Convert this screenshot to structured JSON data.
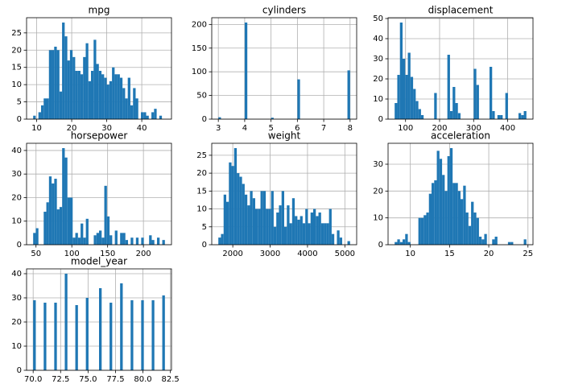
{
  "chart_data": [
    {
      "type": "histogram",
      "title": "mpg",
      "color": "#1f77b4",
      "grid": true,
      "bins": [
        9,
        9.75,
        10.5,
        11.25,
        12,
        12.75,
        13.5,
        14.25,
        15,
        15.75,
        16.5,
        17.25,
        18,
        18.75,
        19.5,
        20.25,
        21,
        21.75,
        22.5,
        23.25,
        24,
        24.75,
        25.5,
        26.25,
        27,
        27.75,
        28.5,
        29.25,
        30,
        30.75,
        31.5,
        32.25,
        33,
        33.75,
        34.5,
        35.25,
        36,
        36.75,
        37.5,
        38.25,
        39,
        39.75,
        40.5,
        41.25,
        42,
        42.75,
        43.5,
        44.25,
        45,
        45.75,
        46.5
      ],
      "values": [
        1,
        0,
        2,
        4,
        6,
        6,
        20,
        20,
        21,
        20,
        8,
        28,
        24,
        17,
        20,
        18,
        14,
        14,
        13,
        18,
        22,
        11,
        14,
        23,
        16,
        14,
        13,
        12,
        10,
        11,
        15,
        13,
        13,
        12,
        9,
        6,
        12,
        4,
        9,
        6,
        0,
        2,
        2,
        1,
        0,
        2,
        3,
        0,
        1,
        0
      ],
      "xlim": [
        7.12,
        48.48
      ],
      "ylim": [
        0,
        29.4
      ],
      "xticks": [
        10,
        20,
        30,
        40
      ],
      "yticks": [
        0,
        5,
        10,
        15,
        20,
        25
      ]
    },
    {
      "type": "histogram",
      "title": "cylinders",
      "color": "#1f77b4",
      "grid": true,
      "bins": [
        3,
        3.1,
        4,
        4.1,
        5,
        5.1,
        6,
        6.1,
        7.9,
        8
      ],
      "values": [
        4,
        0,
        204,
        0,
        3,
        0,
        84,
        0,
        103
      ],
      "xlim": [
        2.75,
        8.25
      ],
      "ylim": [
        0,
        214.2
      ],
      "xticks": [
        3,
        4,
        5,
        6,
        7,
        8
      ],
      "yticks": [
        0,
        50,
        100,
        150,
        200
      ]
    },
    {
      "type": "histogram",
      "title": "displacement",
      "color": "#1f77b4",
      "grid": true,
      "bins": [
        68,
        75.74,
        83.48,
        91.22,
        98.96,
        106.7,
        114.44,
        122.18,
        129.92,
        137.66,
        145.4,
        153.14,
        160.88,
        168.62,
        176.36,
        184.1,
        191.84,
        199.58,
        207.32,
        215.06,
        222.8,
        230.54,
        238.28,
        246.02,
        253.76,
        261.5,
        269.24,
        276.98,
        284.72,
        292.46,
        300.2,
        307.94,
        315.68,
        323.42,
        331.16,
        338.9,
        346.64,
        354.38,
        362.12,
        369.86,
        377.6,
        385.34,
        393.08,
        400.82,
        408.56,
        416.3,
        424.04,
        431.78,
        439.52,
        447.26,
        455
      ],
      "values": [
        8,
        22,
        48,
        30,
        22,
        33,
        21,
        15,
        9,
        5,
        2,
        0,
        0,
        0,
        0,
        13,
        0,
        0,
        0,
        0,
        32,
        4,
        16,
        8,
        3,
        0,
        0,
        0,
        0,
        0,
        25,
        17,
        0,
        0,
        0,
        0,
        26,
        4,
        0,
        2,
        2,
        0,
        13,
        0,
        0,
        0,
        0,
        3,
        2,
        4
      ],
      "xlim": [
        48.65,
        474.35
      ],
      "ylim": [
        0,
        50.4
      ],
      "xticks": [
        100,
        200,
        300,
        400
      ],
      "yticks": [
        0,
        10,
        20,
        30,
        40,
        50
      ]
    },
    {
      "type": "histogram",
      "title": "horsepower",
      "color": "#1f77b4",
      "grid": true,
      "bins": [
        46,
        49.68,
        53.36,
        57.04,
        60.72,
        64.4,
        68.08,
        71.76,
        75.44,
        79.12,
        82.8,
        86.48,
        90.16,
        93.84,
        97.52,
        101.2,
        104.88,
        108.56,
        112.24,
        115.92,
        119.6,
        123.28,
        126.96,
        130.64,
        134.32,
        138,
        141.68,
        145.36,
        149.04,
        152.72,
        156.4,
        160.08,
        163.76,
        167.44,
        171.12,
        174.8,
        178.48,
        182.16,
        185.84,
        189.52,
        193.2,
        196.88,
        200.56,
        204.24,
        207.92,
        211.6,
        215.28,
        218.96,
        222.64,
        226.32,
        230
      ],
      "values": [
        5,
        7,
        0,
        0,
        14,
        18,
        29,
        26,
        28,
        15,
        16,
        41,
        37,
        20,
        20,
        3,
        5,
        3,
        9,
        3,
        11,
        0,
        0,
        4,
        5,
        6,
        3,
        25,
        12,
        4,
        0,
        6,
        0,
        5,
        5,
        2,
        0,
        3,
        0,
        3,
        0,
        3,
        0,
        0,
        4,
        2,
        0,
        3,
        0,
        2
      ],
      "xlim": [
        36.8,
        239.2
      ],
      "ylim": [
        0,
        43.05
      ],
      "xticks": [
        50,
        100,
        150,
        200
      ],
      "yticks": [
        0,
        10,
        20,
        30,
        40
      ]
    },
    {
      "type": "histogram",
      "title": "weight",
      "color": "#1f77b4",
      "grid": true,
      "bins": [
        1613,
        1683.54,
        1754.08,
        1824.62,
        1895.16,
        1965.7,
        2036.24,
        2106.78,
        2177.32,
        2247.86,
        2318.4,
        2388.94,
        2459.48,
        2530.02,
        2600.56,
        2671.1,
        2741.64,
        2812.18,
        2882.72,
        2953.26,
        3023.8,
        3094.34,
        3164.88,
        3235.42,
        3305.96,
        3376.5,
        3447.04,
        3517.58,
        3588.12,
        3658.66,
        3729.2,
        3799.74,
        3870.28,
        3940.82,
        4011.36,
        4081.9,
        4152.44,
        4222.98,
        4293.52,
        4364.06,
        4434.6,
        4505.14,
        4575.68,
        4646.22,
        4716.76,
        4787.3,
        4857.84,
        4928.38,
        4998.92,
        5069.46,
        5140
      ],
      "values": [
        2,
        3,
        14,
        12,
        23,
        22,
        27,
        20,
        19,
        17,
        14,
        11,
        15,
        13,
        10,
        10,
        15,
        15,
        10,
        10,
        15,
        5,
        9,
        11,
        15,
        5,
        11,
        6,
        13,
        8,
        7,
        8,
        6,
        10,
        6,
        9,
        10,
        8,
        9,
        6,
        6,
        6,
        10,
        3,
        0,
        4,
        2,
        0,
        0,
        1
      ],
      "xlim": [
        1436.65,
        5316.35
      ],
      "ylim": [
        0,
        28.35
      ],
      "xticks": [
        2000,
        3000,
        4000,
        5000
      ],
      "yticks": [
        0,
        5,
        10,
        15,
        20,
        25
      ]
    },
    {
      "type": "histogram",
      "title": "acceleration",
      "color": "#1f77b4",
      "grid": true,
      "bins": [
        8,
        8.336,
        8.672,
        9.008,
        9.344,
        9.68,
        10.016,
        10.352,
        10.688,
        11.024,
        11.36,
        11.696,
        12.032,
        12.368,
        12.704,
        13.04,
        13.376,
        13.712,
        14.048,
        14.384,
        14.72,
        15.056,
        15.392,
        15.728,
        16.064,
        16.4,
        16.736,
        17.072,
        17.408,
        17.744,
        18.08,
        18.416,
        18.752,
        19.088,
        19.424,
        19.76,
        20.096,
        20.432,
        20.768,
        21.104,
        21.44,
        21.776,
        22.112,
        22.448,
        22.784,
        23.12,
        23.456,
        23.792,
        24.128,
        24.464,
        24.8
      ],
      "values": [
        1,
        2,
        1,
        2,
        4,
        1,
        0,
        0,
        0,
        10,
        10,
        11,
        12,
        19,
        23,
        24,
        35,
        32,
        26,
        20,
        33,
        36,
        23,
        23,
        20,
        17,
        22,
        12,
        7,
        16,
        12,
        10,
        3,
        2,
        4,
        0,
        0,
        2,
        3,
        0,
        0,
        0,
        0,
        1,
        1,
        0,
        0,
        0,
        0,
        2
      ],
      "xlim": [
        7.16,
        25.64
      ],
      "ylim": [
        0,
        37.8
      ],
      "xticks": [
        10,
        15,
        20,
        25
      ],
      "yticks": [
        0,
        10,
        20,
        30
      ]
    },
    {
      "type": "histogram",
      "title": "model_year",
      "color": "#1f77b4",
      "grid": true,
      "bins": [
        70,
        70.24,
        70.96,
        71.2,
        71.92,
        72.16,
        72.88,
        73.12,
        73.84,
        74.08,
        74.8,
        75.04,
        76,
        76.24,
        76.96,
        77.2,
        77.92,
        78.16,
        78.88,
        79.12,
        79.84,
        80.08,
        80.8,
        81.04,
        81.76,
        82
      ],
      "values": [
        29,
        0,
        28,
        0,
        28,
        0,
        40,
        0,
        27,
        0,
        30,
        0,
        34,
        0,
        28,
        0,
        36,
        0,
        29,
        0,
        29,
        0,
        29,
        0,
        31
      ],
      "xlim": [
        69.4,
        82.6
      ],
      "ylim": [
        0,
        42
      ],
      "xticks": [
        {
          "value": 70,
          "label": "70.0"
        },
        72.5,
        {
          "value": 75,
          "label": "75.0"
        },
        77.5,
        {
          "value": 80,
          "label": "80.0"
        },
        82.5
      ],
      "yticks": [
        0,
        10,
        20,
        30,
        40
      ]
    }
  ]
}
